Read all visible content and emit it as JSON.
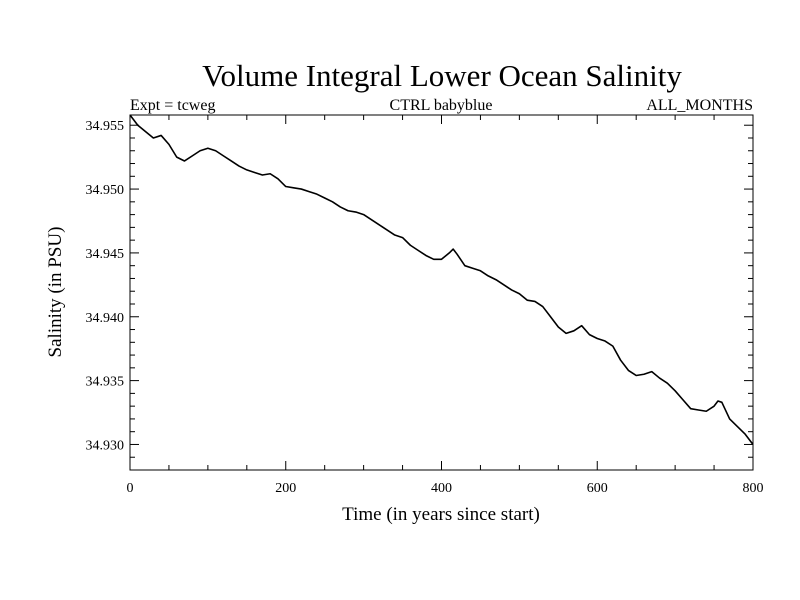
{
  "chart_data": {
    "type": "line",
    "title": "Volume Integral Lower Ocean Salinity",
    "subtitle_left": "Expt = tcweg",
    "subtitle_center": "CTRL babyblue",
    "subtitle_right": "ALL_MONTHS",
    "xlabel": "Time (in years since start)",
    "ylabel": "Salinity (in PSU)",
    "xlim": [
      0,
      800
    ],
    "ylim": [
      34.928,
      34.9558
    ],
    "xticks": [
      0,
      200,
      400,
      600,
      800
    ],
    "xtick_labels": [
      "0",
      "200",
      "400",
      "600",
      "800"
    ],
    "yticks": [
      34.93,
      34.935,
      34.94,
      34.945,
      34.95,
      34.955
    ],
    "ytick_labels": [
      "34.930",
      "34.935",
      "34.940",
      "34.945",
      "34.950",
      "34.955"
    ],
    "grid": false,
    "series": [
      {
        "name": "salinity",
        "color": "#000000",
        "x": [
          0,
          10,
          20,
          30,
          40,
          50,
          60,
          70,
          80,
          90,
          100,
          110,
          120,
          130,
          140,
          150,
          160,
          170,
          180,
          190,
          200,
          210,
          220,
          230,
          240,
          250,
          260,
          270,
          280,
          290,
          300,
          310,
          320,
          330,
          340,
          350,
          360,
          370,
          380,
          390,
          400,
          410,
          415,
          420,
          430,
          440,
          450,
          460,
          470,
          480,
          490,
          500,
          510,
          520,
          530,
          540,
          550,
          560,
          570,
          580,
          590,
          600,
          610,
          620,
          630,
          640,
          650,
          660,
          670,
          680,
          690,
          700,
          710,
          720,
          730,
          740,
          750,
          755,
          760,
          770,
          780,
          790,
          800
        ],
        "y": [
          34.9558,
          34.955,
          34.9545,
          34.954,
          34.9542,
          34.9535,
          34.9525,
          34.9522,
          34.9526,
          34.953,
          34.9532,
          34.953,
          34.9526,
          34.9522,
          34.9518,
          34.9515,
          34.9513,
          34.9511,
          34.9512,
          34.9508,
          34.9502,
          34.9501,
          34.95,
          34.9498,
          34.9496,
          34.9493,
          34.949,
          34.9486,
          34.9483,
          34.9482,
          34.948,
          34.9476,
          34.9472,
          34.9468,
          34.9464,
          34.9462,
          34.9456,
          34.9452,
          34.9448,
          34.9445,
          34.9445,
          34.945,
          34.9453,
          34.9449,
          34.944,
          34.9438,
          34.9436,
          34.9432,
          34.9429,
          34.9425,
          34.9421,
          34.9418,
          34.9413,
          34.9412,
          34.9408,
          34.94,
          34.9392,
          34.9387,
          34.9389,
          34.9393,
          34.9386,
          34.9383,
          34.9381,
          34.9377,
          34.9366,
          34.9358,
          34.9354,
          34.9355,
          34.9357,
          34.9352,
          34.9348,
          34.9342,
          34.9335,
          34.9328,
          34.9327,
          34.9326,
          34.933,
          34.9334,
          34.9333,
          34.932,
          34.9314,
          34.9308,
          34.93
        ]
      }
    ]
  }
}
